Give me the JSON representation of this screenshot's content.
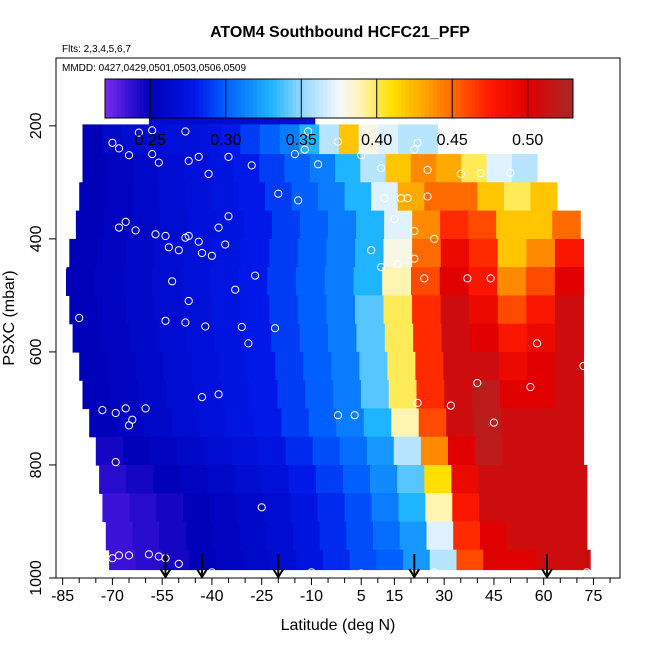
{
  "chart_data": {
    "type": "heatmap",
    "title": "ATOM4 Southbound HCFC21_PFP",
    "flights_label": "Flts: 2,3,4,5,6,7",
    "dates_label": "MMDD: 0427,0429,0501,0503,0506,0509",
    "xlabel": "Latitude (deg N)",
    "ylabel": "PSXC (mbar)",
    "xlim": [
      -87,
      83
    ],
    "ylim": [
      1000,
      80
    ],
    "x_ticks": [
      -85,
      -70,
      -55,
      -40,
      -25,
      -10,
      5,
      15,
      30,
      45,
      60,
      75
    ],
    "x_tick_labels": [
      "-85",
      "-70",
      "-55",
      "-40",
      "-25",
      "-10",
      "5",
      "15",
      "30",
      "45",
      "60",
      "75"
    ],
    "x_minor_ticks": [
      -80,
      -75,
      -65,
      -60,
      -50,
      -45,
      -35,
      -30,
      -20,
      -15,
      -5,
      0,
      10,
      20,
      25,
      35,
      40,
      50,
      55,
      65,
      70,
      80
    ],
    "y_ticks": [
      200,
      400,
      600,
      800,
      1000
    ],
    "y_tick_labels": [
      "200",
      "400",
      "600",
      "800",
      "1000"
    ],
    "colorbar": {
      "range": [
        0.22,
        0.53
      ],
      "ticks": [
        0.25,
        0.3,
        0.35,
        0.4,
        0.45,
        0.5
      ],
      "tick_labels": [
        "0.25",
        "0.30",
        "0.35",
        "0.40",
        "0.45",
        "0.50"
      ],
      "stops": [
        {
          "v": 0.22,
          "color": "#7b2cf0"
        },
        {
          "v": 0.235,
          "color": "#3b12d8"
        },
        {
          "v": 0.25,
          "color": "#0000b8"
        },
        {
          "v": 0.28,
          "color": "#0018e8"
        },
        {
          "v": 0.3,
          "color": "#0060ff"
        },
        {
          "v": 0.33,
          "color": "#1fb4ff"
        },
        {
          "v": 0.35,
          "color": "#8fd8ff"
        },
        {
          "v": 0.375,
          "color": "#f4f8ff"
        },
        {
          "v": 0.39,
          "color": "#fff4b0"
        },
        {
          "v": 0.41,
          "color": "#ffe000"
        },
        {
          "v": 0.43,
          "color": "#ffaa00"
        },
        {
          "v": 0.45,
          "color": "#ff6a00"
        },
        {
          "v": 0.475,
          "color": "#ff1a00"
        },
        {
          "v": 0.5,
          "color": "#e00000"
        },
        {
          "v": 0.53,
          "color": "#a82828"
        }
      ]
    },
    "field": {
      "lat_bins": [
        -86,
        -83,
        -80,
        -77,
        -74,
        -71,
        -68,
        -65,
        -62,
        -59,
        -56,
        -53,
        -50,
        -47,
        -44,
        -41,
        -38,
        -35,
        -32,
        -29,
        -26,
        -23,
        -20,
        -17,
        -14,
        -11,
        -8,
        -5,
        -2,
        1,
        4,
        7,
        10,
        13,
        16,
        19,
        22,
        25,
        28,
        31,
        34,
        37,
        40,
        43,
        46,
        49,
        52,
        55,
        58,
        61,
        64,
        67,
        70,
        73
      ],
      "pressure_levels": [
        170,
        225,
        275,
        325,
        375,
        425,
        475,
        525,
        575,
        625,
        675,
        725,
        775,
        825,
        875,
        925,
        975
      ],
      "level_lat_ranges": [
        [
          -59,
          -9
        ],
        [
          -79,
          22
        ],
        [
          -79,
          25
        ],
        [
          -80,
          27
        ],
        [
          -81,
          28
        ],
        [
          -83,
          29
        ],
        [
          -84,
          30
        ],
        [
          -83,
          30
        ],
        [
          -82,
          30
        ],
        [
          -80,
          31
        ],
        [
          -79,
          31
        ],
        [
          -77,
          31
        ],
        [
          -75,
          32
        ],
        [
          -74,
          32
        ],
        [
          -73,
          33
        ],
        [
          -72,
          33
        ],
        [
          -71,
          33
        ]
      ],
      "level_lat_ranges_upper": [
        [
          -59,
          -9
        ],
        [
          -79,
          28
        ],
        [
          -79,
          58
        ],
        [
          -80,
          64
        ],
        [
          -81,
          71
        ],
        [
          -83,
          72
        ],
        [
          -84,
          72
        ],
        [
          -83,
          72
        ],
        [
          -82,
          72
        ],
        [
          -80,
          72
        ],
        [
          -79,
          72
        ],
        [
          -77,
          72
        ],
        [
          -75,
          72
        ],
        [
          -74,
          73
        ],
        [
          -73,
          73
        ],
        [
          -72,
          73
        ],
        [
          -71,
          74
        ]
      ],
      "values": [
        [
          0.265,
          0.265,
          0.265,
          0.265,
          0.265,
          0.265,
          0.265,
          0.265,
          0.265,
          0.265,
          0.265,
          0.265,
          0.265,
          0.265,
          0.265,
          0.265,
          0.265,
          0.27,
          0.275
        ],
        [
          0.25,
          0.26,
          0.265,
          0.265,
          0.27,
          0.27,
          0.275,
          0.28,
          0.29,
          0.3,
          0.31,
          0.33,
          0.36,
          0.42,
          0.38,
          0.37,
          0.36,
          0.36
        ],
        [
          0.25,
          0.255,
          0.26,
          0.265,
          0.27,
          0.275,
          0.28,
          0.29,
          0.3,
          0.31,
          0.33,
          0.36,
          0.42,
          0.44,
          0.43,
          0.4,
          0.37,
          0.36
        ],
        [
          0.25,
          0.255,
          0.26,
          0.265,
          0.27,
          0.275,
          0.28,
          0.29,
          0.3,
          0.31,
          0.33,
          0.37,
          0.43,
          0.45,
          0.45,
          0.42,
          0.4,
          0.42
        ],
        [
          0.25,
          0.255,
          0.26,
          0.265,
          0.27,
          0.275,
          0.28,
          0.29,
          0.3,
          0.31,
          0.33,
          0.37,
          0.44,
          0.47,
          0.46,
          0.42,
          0.42,
          0.45
        ],
        [
          0.25,
          0.255,
          0.26,
          0.265,
          0.27,
          0.275,
          0.28,
          0.29,
          0.3,
          0.31,
          0.33,
          0.38,
          0.45,
          0.49,
          0.47,
          0.42,
          0.44,
          0.48
        ],
        [
          0.25,
          0.255,
          0.26,
          0.265,
          0.27,
          0.275,
          0.28,
          0.29,
          0.3,
          0.31,
          0.33,
          0.39,
          0.46,
          0.5,
          0.48,
          0.44,
          0.46,
          0.5
        ],
        [
          0.25,
          0.255,
          0.26,
          0.265,
          0.27,
          0.275,
          0.28,
          0.29,
          0.3,
          0.31,
          0.34,
          0.4,
          0.47,
          0.51,
          0.49,
          0.46,
          0.48,
          0.51
        ],
        [
          0.25,
          0.255,
          0.26,
          0.265,
          0.27,
          0.275,
          0.28,
          0.29,
          0.3,
          0.31,
          0.34,
          0.4,
          0.47,
          0.51,
          0.5,
          0.48,
          0.49,
          0.51
        ],
        [
          0.25,
          0.255,
          0.26,
          0.265,
          0.27,
          0.275,
          0.28,
          0.29,
          0.3,
          0.31,
          0.34,
          0.4,
          0.47,
          0.51,
          0.51,
          0.49,
          0.5,
          0.51
        ],
        [
          0.25,
          0.255,
          0.26,
          0.265,
          0.27,
          0.275,
          0.28,
          0.29,
          0.3,
          0.31,
          0.34,
          0.4,
          0.47,
          0.51,
          0.52,
          0.5,
          0.5,
          0.51
        ],
        [
          0.25,
          0.255,
          0.26,
          0.265,
          0.27,
          0.275,
          0.28,
          0.29,
          0.3,
          0.31,
          0.33,
          0.39,
          0.46,
          0.51,
          0.52,
          0.51,
          0.51,
          0.51
        ],
        [
          0.245,
          0.25,
          0.255,
          0.26,
          0.265,
          0.27,
          0.275,
          0.285,
          0.295,
          0.305,
          0.32,
          0.36,
          0.44,
          0.5,
          0.52,
          0.51,
          0.51,
          0.51
        ],
        [
          0.24,
          0.245,
          0.25,
          0.255,
          0.26,
          0.265,
          0.27,
          0.28,
          0.29,
          0.3,
          0.315,
          0.34,
          0.41,
          0.49,
          0.51,
          0.51,
          0.51,
          0.51
        ],
        [
          0.235,
          0.24,
          0.245,
          0.25,
          0.255,
          0.26,
          0.265,
          0.275,
          0.285,
          0.295,
          0.31,
          0.33,
          0.39,
          0.48,
          0.51,
          0.51,
          0.51,
          0.51
        ],
        [
          0.235,
          0.24,
          0.245,
          0.25,
          0.255,
          0.26,
          0.265,
          0.275,
          0.285,
          0.295,
          0.305,
          0.32,
          0.37,
          0.47,
          0.5,
          0.51,
          0.51,
          0.51
        ],
        [
          0.235,
          0.24,
          0.245,
          0.25,
          0.255,
          0.26,
          0.265,
          0.275,
          0.285,
          0.295,
          0.3,
          0.32,
          0.36,
          0.46,
          0.5,
          0.5,
          0.51,
          0.51
        ]
      ]
    },
    "sample_points": [
      [
        -58,
        208
      ],
      [
        -62,
        212
      ],
      [
        -48,
        210
      ],
      [
        -11,
        210
      ],
      [
        -70,
        230
      ],
      [
        -68,
        240
      ],
      [
        -82,
        242
      ],
      [
        -65,
        252
      ],
      [
        -58,
        250
      ],
      [
        -44,
        255
      ],
      [
        -35,
        255
      ],
      [
        -15,
        250
      ],
      [
        -2,
        228
      ],
      [
        -12,
        242
      ],
      [
        5,
        252
      ],
      [
        21,
        242
      ],
      [
        22,
        230
      ],
      [
        -56,
        265
      ],
      [
        -47,
        262
      ],
      [
        -41,
        285
      ],
      [
        -28,
        270
      ],
      [
        -8,
        268
      ],
      [
        11,
        275
      ],
      [
        25,
        278
      ],
      [
        35,
        285
      ],
      [
        41,
        284
      ],
      [
        50,
        283
      ],
      [
        -66,
        370
      ],
      [
        -68,
        380
      ],
      [
        -63,
        385
      ],
      [
        -57,
        392
      ],
      [
        -54,
        395
      ],
      [
        -48,
        398
      ],
      [
        -44,
        405
      ],
      [
        -36,
        410
      ],
      [
        -20,
        320
      ],
      [
        -14,
        332
      ],
      [
        -35,
        360
      ],
      [
        -47,
        395
      ],
      [
        -38,
        380
      ],
      [
        12,
        328
      ],
      [
        17,
        328
      ],
      [
        19,
        328
      ],
      [
        25,
        325
      ],
      [
        15,
        365
      ],
      [
        21,
        386
      ],
      [
        27,
        400
      ],
      [
        -53,
        415
      ],
      [
        -50,
        420
      ],
      [
        -43,
        425
      ],
      [
        -40,
        430
      ],
      [
        8,
        420
      ],
      [
        21,
        435
      ],
      [
        -85,
        450
      ],
      [
        -52,
        475
      ],
      [
        -33,
        490
      ],
      [
        -27,
        465
      ],
      [
        -47,
        510
      ],
      [
        11,
        450
      ],
      [
        16,
        445
      ],
      [
        24,
        470
      ],
      [
        44,
        470
      ],
      [
        37,
        470
      ],
      [
        -80,
        540
      ],
      [
        -54,
        545
      ],
      [
        -48,
        548
      ],
      [
        -42,
        555
      ],
      [
        -31,
        556
      ],
      [
        -21,
        558
      ],
      [
        -29,
        585
      ],
      [
        58,
        585
      ],
      [
        72,
        625
      ],
      [
        40,
        655
      ],
      [
        -60,
        700
      ],
      [
        -66,
        700
      ],
      [
        -69,
        708
      ],
      [
        -73,
        703
      ],
      [
        -64,
        720
      ],
      [
        -65,
        730
      ],
      [
        -38,
        675
      ],
      [
        -43,
        680
      ],
      [
        3,
        712
      ],
      [
        -2,
        712
      ],
      [
        22,
        690
      ],
      [
        32,
        695
      ],
      [
        45,
        725
      ],
      [
        56,
        662
      ],
      [
        -69,
        795
      ],
      [
        -25,
        875
      ],
      [
        -70,
        965
      ],
      [
        -65,
        960
      ],
      [
        -59,
        958
      ],
      [
        -56,
        962
      ],
      [
        -54,
        965
      ],
      [
        -68,
        960
      ],
      [
        -50,
        975
      ],
      [
        -44,
        995
      ],
      [
        -38,
        1000
      ],
      [
        -31,
        1000
      ],
      [
        -25,
        1000
      ],
      [
        -21,
        1000
      ],
      [
        -10,
        990
      ],
      [
        0,
        995
      ],
      [
        8,
        995
      ],
      [
        11,
        995
      ],
      [
        16,
        998
      ],
      [
        19,
        1000
      ],
      [
        22,
        1000
      ],
      [
        27,
        990
      ],
      [
        33,
        995
      ],
      [
        43,
        1000
      ],
      [
        50,
        1000
      ],
      [
        55,
        995
      ],
      [
        73,
        990
      ],
      [
        -55,
        1000
      ],
      [
        -51,
        1000
      ],
      [
        -49,
        995
      ],
      [
        -40,
        990
      ],
      [
        -28,
        998
      ],
      [
        -17,
        1000
      ],
      [
        -13,
        1000
      ],
      [
        -5,
        1000
      ],
      [
        2,
        1000
      ],
      [
        5,
        992
      ],
      [
        14,
        1000
      ]
    ],
    "flight_markers_lat": [
      -54,
      -43,
      -20,
      21,
      61
    ]
  }
}
